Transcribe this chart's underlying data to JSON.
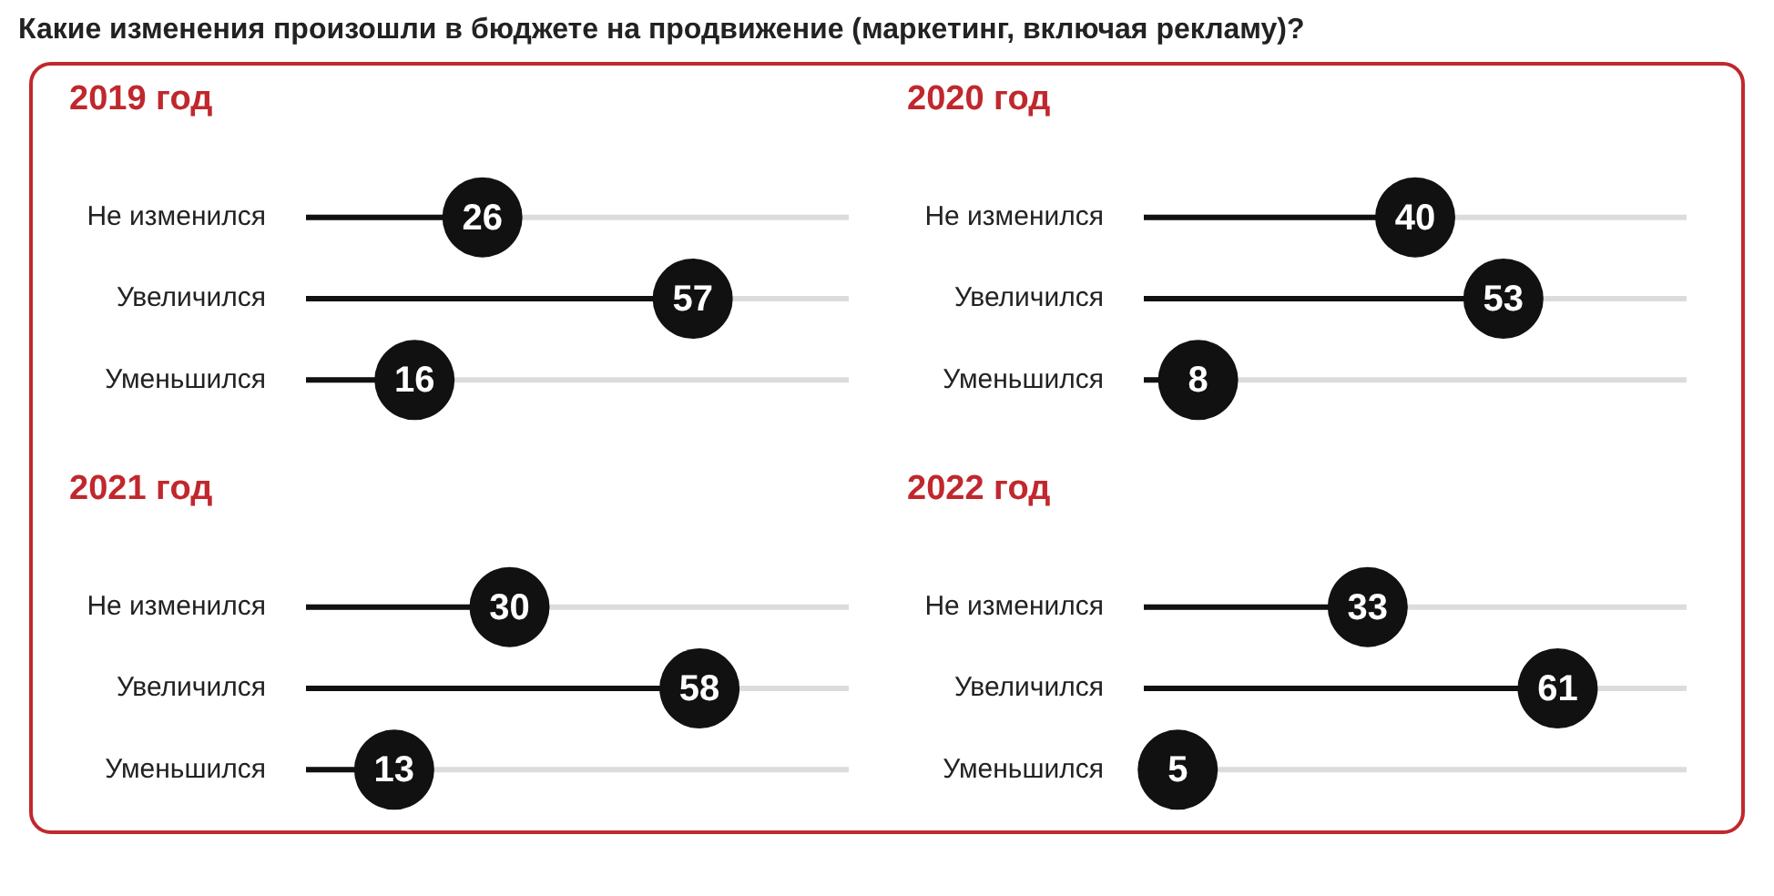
{
  "chart_data": [
    {
      "type": "other",
      "title": "Какие изменения произошли в бюджете на продвижение (маркетинг, включая рекламу)?"
    },
    {
      "type": "lollipop",
      "orientation": "horizontal",
      "title": "2019 год",
      "categories": [
        "Не изменился",
        "Увеличился",
        "Уменьшился"
      ],
      "values": [
        26,
        57,
        16
      ],
      "color": "#111111",
      "grid": "y",
      "data_labels": true
    },
    {
      "type": "lollipop",
      "orientation": "horizontal",
      "title": "2020 год",
      "categories": [
        "Не изменился",
        "Увеличился",
        "Уменьшился"
      ],
      "values": [
        40,
        53,
        8
      ],
      "color": "#111111",
      "grid": "y",
      "data_labels": true
    },
    {
      "type": "lollipop",
      "orientation": "horizontal",
      "title": "2021 год",
      "categories": [
        "Не изменился",
        "Увеличился",
        "Уменьшился"
      ],
      "values": [
        30,
        58,
        13
      ],
      "color": "#111111",
      "grid": "y",
      "data_labels": true
    },
    {
      "type": "lollipop",
      "orientation": "horizontal",
      "title": "2022 год",
      "categories": [
        "Не изменился",
        "Увеличился",
        "Уменьшился"
      ],
      "values": [
        33,
        61,
        5
      ],
      "color": "#111111",
      "grid": "y",
      "data_labels": true
    }
  ]
}
